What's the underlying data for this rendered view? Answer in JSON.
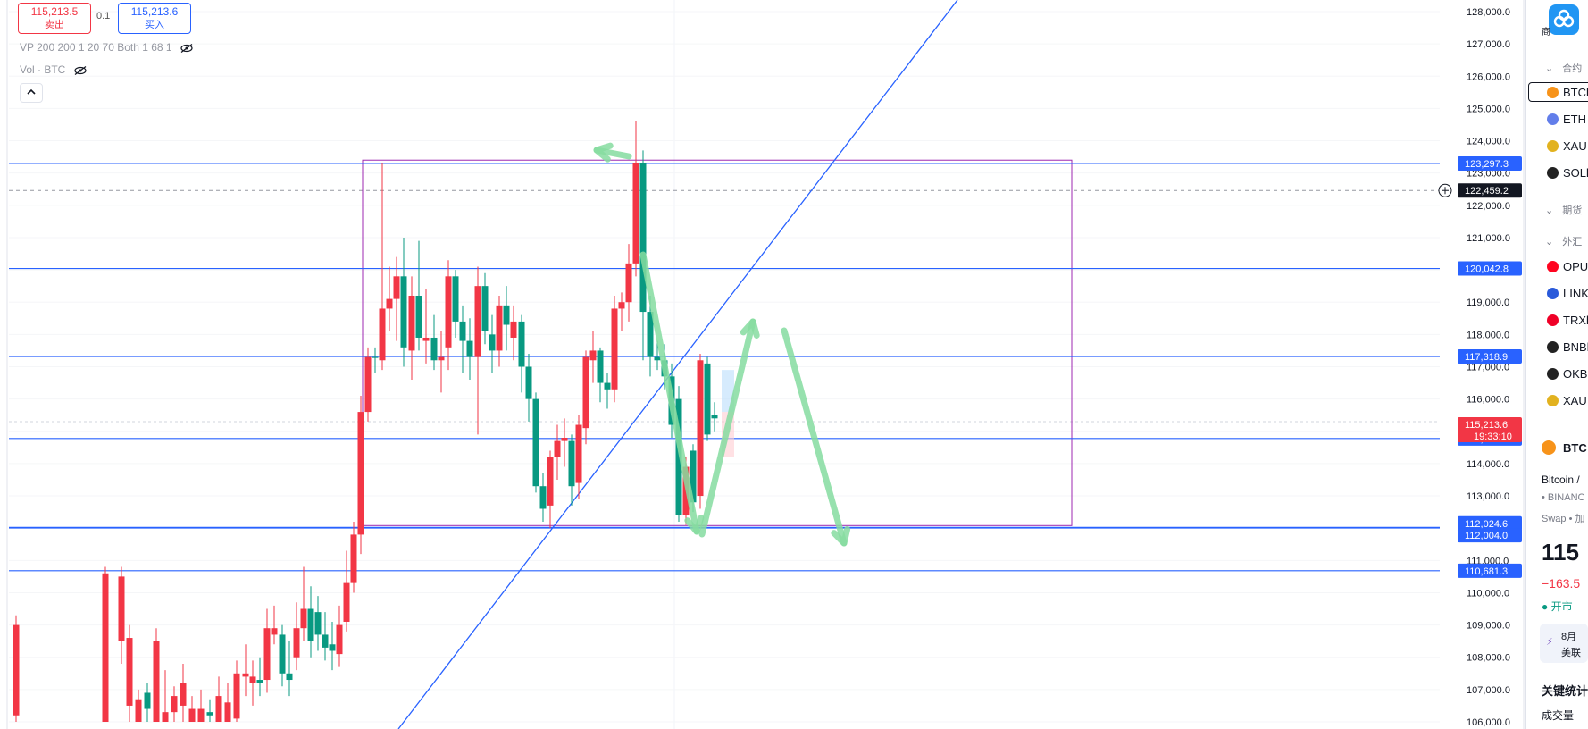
{
  "trade": {
    "sell_price": "115,213.5",
    "sell_label": "卖出",
    "qty": "0.1",
    "buy_price": "115,213.6",
    "buy_label": "买入"
  },
  "indicators": [
    {
      "label": "VP 200 200 1 20 70 Both 1 68 1",
      "icon": "eye-off-icon"
    },
    {
      "label": "Vol · BTC",
      "icon": "eye-off-icon"
    }
  ],
  "collapse_icon": "chevron-up-icon",
  "price_axis": {
    "ticks": [
      "128,000.0",
      "127,000.0",
      "126,000.0",
      "125,000.0",
      "124,000.0",
      "123,000.0",
      "122,000.0",
      "121,000.0",
      "120,000.0",
      "119,000.0",
      "118,000.0",
      "117,000.0",
      "116,000.0",
      "115,000.0",
      "114,000.0",
      "113,000.0",
      "112,000.0",
      "111,000.0",
      "110,000.0",
      "109,000.0",
      "108,000.0",
      "107,000.0",
      "106,000.0"
    ],
    "tick_values": [
      128000,
      127000,
      126000,
      125000,
      124000,
      123000,
      122000,
      121000,
      120000,
      119000,
      118000,
      117000,
      116000,
      115000,
      114000,
      113000,
      112000,
      111000,
      110000,
      109000,
      108000,
      107000,
      106000
    ]
  },
  "levels": [
    {
      "label": "123,297.3",
      "value": 123297.3,
      "color": "#2962ff"
    },
    {
      "label": "120,042.8",
      "value": 120042.8,
      "color": "#2962ff"
    },
    {
      "label": "117,318.9",
      "value": 117318.9,
      "color": "#2962ff"
    },
    {
      "label": "114,777.4",
      "value": 114777.4,
      "color": "#2962ff"
    },
    {
      "label": "112,024.6",
      "value": 112024.6,
      "color": "#2962ff"
    },
    {
      "label": "112,004.0",
      "value": 112004.0,
      "color": "#2962ff"
    },
    {
      "label": "110,681.3",
      "value": 110681.3,
      "color": "#2962ff"
    }
  ],
  "crosshair": {
    "label": "122,459.2",
    "value": 122459.2
  },
  "current": {
    "price": "115,213.6",
    "countdown": "19:33:10",
    "value": 115213.6,
    "color": "#f23645"
  },
  "colors": {
    "up": "#089981",
    "down": "#f23645",
    "box": "#9c27b0",
    "arrow": "#86dca0",
    "trendline": "#2962ff"
  },
  "watchlist": {
    "header_partial": "商",
    "sections": [
      "合约",
      "期货",
      "外汇"
    ],
    "items": [
      {
        "symbol": "BTCl",
        "color": "#f7931a",
        "selected": true
      },
      {
        "symbol": "ETH",
        "color": "#627eea"
      },
      {
        "symbol": "XAU",
        "color": "#e2b21f"
      },
      {
        "symbol": "SOLl",
        "color": "#222222"
      },
      {
        "symbol": "OPU",
        "color": "#ff0420"
      },
      {
        "symbol": "LINK",
        "color": "#2a5ada"
      },
      {
        "symbol": "TRXl",
        "color": "#ef0027"
      },
      {
        "symbol": "BNBl",
        "color": "#222222"
      },
      {
        "symbol": "OKB",
        "color": "#222222"
      },
      {
        "symbol": "XAU",
        "color": "#e2b21f"
      }
    ]
  },
  "details": {
    "symbol": "BTC",
    "name": "Bitcoin /",
    "exchange": "• BINANC",
    "type": "Swap • 加",
    "price": "115",
    "change": "−163.5",
    "status": "● 开市",
    "news_line1": "8月",
    "news_line2": "美联",
    "key_stats": "关键统计",
    "volume_label": "成交量"
  }
}
